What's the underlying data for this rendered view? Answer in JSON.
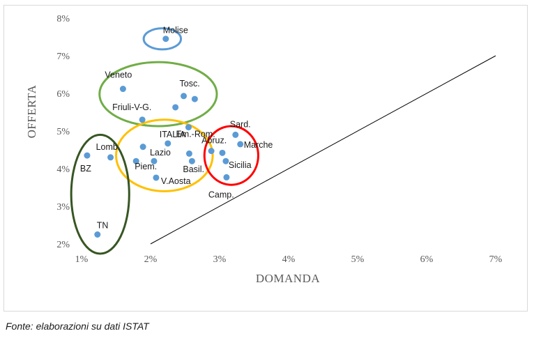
{
  "chart_data": {
    "type": "scatter",
    "title": "",
    "xlabel": "DOMANDA",
    "ylabel": "OFFERTA",
    "xlim": [
      1,
      7
    ],
    "ylim": [
      2,
      8
    ],
    "x_ticks": [
      "1%",
      "2%",
      "3%",
      "4%",
      "5%",
      "6%",
      "7%"
    ],
    "y_ticks": [
      "2%",
      "3%",
      "4%",
      "5%",
      "6%",
      "7%",
      "8%"
    ],
    "grid": false,
    "legend": "none",
    "reference_line": {
      "from": [
        2,
        2
      ],
      "to": [
        7,
        7
      ],
      "color": "#000000"
    },
    "point_color": "#5b9bd5",
    "points": [
      {
        "label": "Molise",
        "x": 2.22,
        "y": 7.45
      },
      {
        "label": "Veneto",
        "x": 1.6,
        "y": 6.12
      },
      {
        "label": "Tosc.",
        "x": 2.48,
        "y": 5.93
      },
      {
        "label": "",
        "x": 2.64,
        "y": 5.85
      },
      {
        "label": "",
        "x": 2.36,
        "y": 5.63
      },
      {
        "label": "Friuli-V-G.",
        "x": 1.88,
        "y": 5.3
      },
      {
        "label": "Em.-Rom.",
        "x": 2.55,
        "y": 5.1
      },
      {
        "label": "ITALIA",
        "x": 2.25,
        "y": 4.67
      },
      {
        "label": "",
        "x": 1.89,
        "y": 4.58
      },
      {
        "label": "Lazio",
        "x": 2.05,
        "y": 4.2
      },
      {
        "label": "Piem.",
        "x": 1.79,
        "y": 4.2
      },
      {
        "label": "V.Aosta",
        "x": 2.08,
        "y": 3.76
      },
      {
        "label": "",
        "x": 2.56,
        "y": 4.4
      },
      {
        "label": "Basil.",
        "x": 2.6,
        "y": 4.2
      },
      {
        "label": "Abruz.",
        "x": 2.88,
        "y": 4.47
      },
      {
        "label": "",
        "x": 3.04,
        "y": 4.42
      },
      {
        "label": "Sard.",
        "x": 3.23,
        "y": 4.9
      },
      {
        "label": "Marche",
        "x": 3.3,
        "y": 4.65
      },
      {
        "label": "Sicilia",
        "x": 3.09,
        "y": 4.2
      },
      {
        "label": "Camp.",
        "x": 3.1,
        "y": 3.77
      },
      {
        "label": "BZ",
        "x": 1.08,
        "y": 4.35
      },
      {
        "label": "Lomb.",
        "x": 1.42,
        "y": 4.3
      },
      {
        "label": "TN",
        "x": 1.23,
        "y": 2.25
      }
    ],
    "groups": [
      {
        "color": "#5b9bd5",
        "center": [
          2.17,
          7.45
        ],
        "radius": [
          0.27,
          0.28
        ]
      },
      {
        "color": "#70ad47",
        "center": [
          2.11,
          5.98
        ],
        "radius": [
          0.85,
          0.85
        ]
      },
      {
        "color": "#ffc000",
        "center": [
          2.2,
          4.35
        ],
        "radius": [
          0.7,
          0.95
        ]
      },
      {
        "color": "#ff0000",
        "center": [
          3.17,
          4.35
        ],
        "radius": [
          0.39,
          0.78
        ]
      },
      {
        "color": "#375623",
        "center": [
          1.27,
          3.32
        ],
        "radius": [
          0.42,
          1.58
        ]
      }
    ]
  },
  "source_note": "Fonte: elaborazioni su dati ISTAT"
}
